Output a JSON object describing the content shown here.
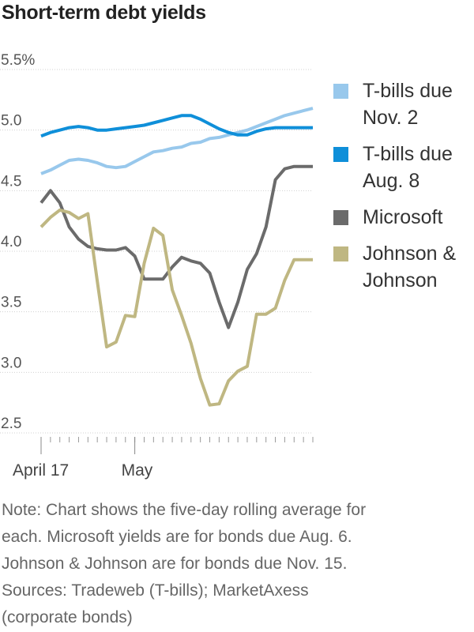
{
  "page": {
    "title": "Short-term debt yields"
  },
  "notes": [
    "Note: Chart shows the five-day rolling average for",
    "each. Microsoft yields are for bonds due Aug. 6.",
    "Johnson & Johnson are for bonds due Nov. 15.",
    "Sources: Tradeweb (T-bills); MarketAxess",
    "(corporate bonds)"
  ],
  "chart_data": {
    "type": "line",
    "title": "Short-term debt yields",
    "xlabel": "",
    "ylabel": "",
    "ylim": [
      2.5,
      5.5
    ],
    "yticks": [
      5.5,
      5.0,
      4.5,
      4.0,
      3.5,
      3.0,
      2.5
    ],
    "ytick_labels": [
      "5.5%",
      "5.0",
      "4.5",
      "4.0",
      "3.5",
      "3.0",
      "2.5"
    ],
    "grid": true,
    "legend_position": "right",
    "x_tick_labels": [
      {
        "label": "April 17",
        "index": 0
      },
      {
        "label": "May",
        "index": 10
      }
    ],
    "num_points": 30,
    "series": [
      {
        "name": "T-bills due Nov. 2",
        "color": "#98c8ec",
        "values": [
          4.64,
          4.67,
          4.71,
          4.75,
          4.76,
          4.75,
          4.73,
          4.7,
          4.69,
          4.7,
          4.74,
          4.78,
          4.82,
          4.83,
          4.85,
          4.86,
          4.89,
          4.9,
          4.93,
          4.94,
          4.96,
          4.98,
          5.0,
          5.03,
          5.06,
          5.09,
          5.12,
          5.14,
          5.16,
          5.18
        ]
      },
      {
        "name": "T-bills due Aug. 8",
        "color": "#0f8fd9",
        "values": [
          4.95,
          4.98,
          5.0,
          5.02,
          5.03,
          5.02,
          5.0,
          5.0,
          5.01,
          5.02,
          5.03,
          5.04,
          5.06,
          5.08,
          5.1,
          5.12,
          5.12,
          5.09,
          5.05,
          5.01,
          4.98,
          4.96,
          4.96,
          4.99,
          5.01,
          5.02,
          5.02,
          5.02,
          5.02,
          5.02
        ]
      },
      {
        "name": "Microsoft",
        "color": "#6b6b6b",
        "values": [
          4.4,
          4.5,
          4.4,
          4.2,
          4.1,
          4.04,
          4.02,
          4.01,
          4.01,
          4.03,
          3.96,
          3.77,
          3.77,
          3.77,
          3.87,
          3.95,
          3.92,
          3.9,
          3.82,
          3.58,
          3.37,
          3.58,
          3.85,
          3.98,
          4.2,
          4.59,
          4.68,
          4.7,
          4.7,
          4.7
        ]
      },
      {
        "name": "Johnson & Johnson",
        "color": "#bfb782",
        "values": [
          4.2,
          4.28,
          4.34,
          4.32,
          4.27,
          4.31,
          3.75,
          3.21,
          3.25,
          3.47,
          3.46,
          3.9,
          4.19,
          4.13,
          3.68,
          3.47,
          3.24,
          2.95,
          2.73,
          2.74,
          2.93,
          3.01,
          3.05,
          3.48,
          3.48,
          3.53,
          3.76,
          3.93,
          3.93,
          3.93
        ]
      }
    ]
  }
}
